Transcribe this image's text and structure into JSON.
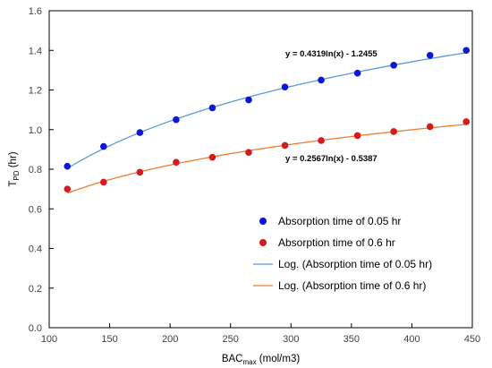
{
  "chart_data": {
    "type": "scatter",
    "xlabel": {
      "main": "BAC",
      "sub": "max",
      "tail": " (mol/m3)"
    },
    "ylabel": {
      "main": "T",
      "sub": "PD",
      "tail": " (hr)"
    },
    "xlim": [
      100,
      450
    ],
    "ylim": [
      0.0,
      1.6
    ],
    "xticks": [
      100,
      150,
      200,
      250,
      300,
      350,
      400,
      450
    ],
    "yticks": [
      "0.0",
      "0.2",
      "0.4",
      "0.6",
      "0.8",
      "1.0",
      "1.2",
      "1.4",
      "1.6"
    ],
    "grid": false,
    "legend_position": "bottom-right",
    "series": [
      {
        "name": "Absorption time of 0.05 hr",
        "color": "#0b16d6",
        "x": [
          115,
          145,
          175,
          205,
          235,
          265,
          295,
          325,
          355,
          385,
          415,
          445
        ],
        "y": [
          0.815,
          0.915,
          0.985,
          1.05,
          1.11,
          1.15,
          1.215,
          1.25,
          1.285,
          1.325,
          1.375,
          1.4
        ]
      },
      {
        "name": "Absorption time of 0.6 hr",
        "color": "#d41a1a",
        "x": [
          115,
          145,
          175,
          205,
          235,
          265,
          295,
          325,
          355,
          385,
          415,
          445
        ],
        "y": [
          0.7,
          0.735,
          0.785,
          0.835,
          0.86,
          0.885,
          0.92,
          0.945,
          0.97,
          0.99,
          1.015,
          1.04
        ]
      }
    ],
    "trendlines": [
      {
        "name": "Log. (Absorption time of 0.05 hr)",
        "color": "#5b9bd5",
        "a": 0.4319,
        "b": -1.2455,
        "equation": "y = 0.4319ln(x) - 1.2455"
      },
      {
        "name": "Log. (Absorption time of 0.6 hr)",
        "color": "#ed7d31",
        "a": 0.2567,
        "b": -0.5387,
        "equation": "y = 0.2567ln(x) - 0.5387"
      }
    ]
  }
}
